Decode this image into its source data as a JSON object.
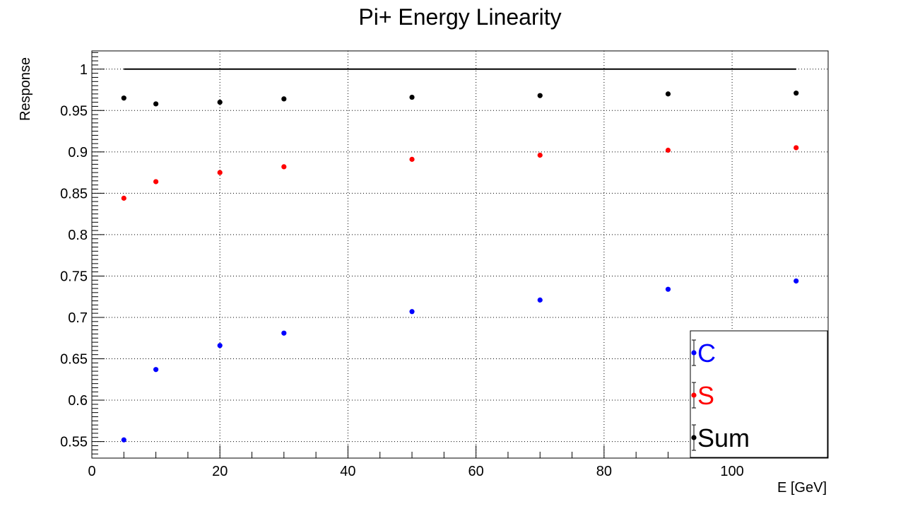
{
  "chart_data": {
    "type": "scatter",
    "title": "Pi+ Energy Linearity",
    "xlabel": "E [GeV]",
    "ylabel": "Response",
    "xlim": [
      0,
      115
    ],
    "ylim": [
      0.53,
      1.022
    ],
    "grid": true,
    "x_ticks": [
      0,
      20,
      40,
      60,
      80,
      100
    ],
    "x_tick_labels": [
      "0",
      "20",
      "40",
      "60",
      "80",
      "100"
    ],
    "y_ticks": [
      0.55,
      0.6,
      0.65,
      0.7,
      0.75,
      0.8,
      0.85,
      0.9,
      0.95,
      1.0
    ],
    "y_tick_labels": [
      "0.55",
      "0.6",
      "0.65",
      "0.7",
      "0.75",
      "0.8",
      "0.85",
      "0.9",
      "0.95",
      "1"
    ],
    "reference_line": {
      "y": 1.0,
      "x_range": [
        5,
        110
      ],
      "color": "#000000"
    },
    "legend_position": "bottom-right",
    "series": [
      {
        "name": "C",
        "color": "#0000ff",
        "x": [
          5,
          10,
          20,
          30,
          50,
          70,
          90,
          110
        ],
        "y": [
          0.552,
          0.637,
          0.666,
          0.681,
          0.707,
          0.721,
          0.734,
          0.744
        ]
      },
      {
        "name": "S",
        "color": "#ff0000",
        "x": [
          5,
          10,
          20,
          30,
          50,
          70,
          90,
          110
        ],
        "y": [
          0.844,
          0.864,
          0.875,
          0.882,
          0.891,
          0.896,
          0.902,
          0.905
        ]
      },
      {
        "name": "Sum",
        "color": "#000000",
        "x": [
          5,
          10,
          20,
          30,
          50,
          70,
          90,
          110
        ],
        "y": [
          0.965,
          0.958,
          0.96,
          0.964,
          0.966,
          0.968,
          0.97,
          0.971
        ]
      }
    ]
  }
}
